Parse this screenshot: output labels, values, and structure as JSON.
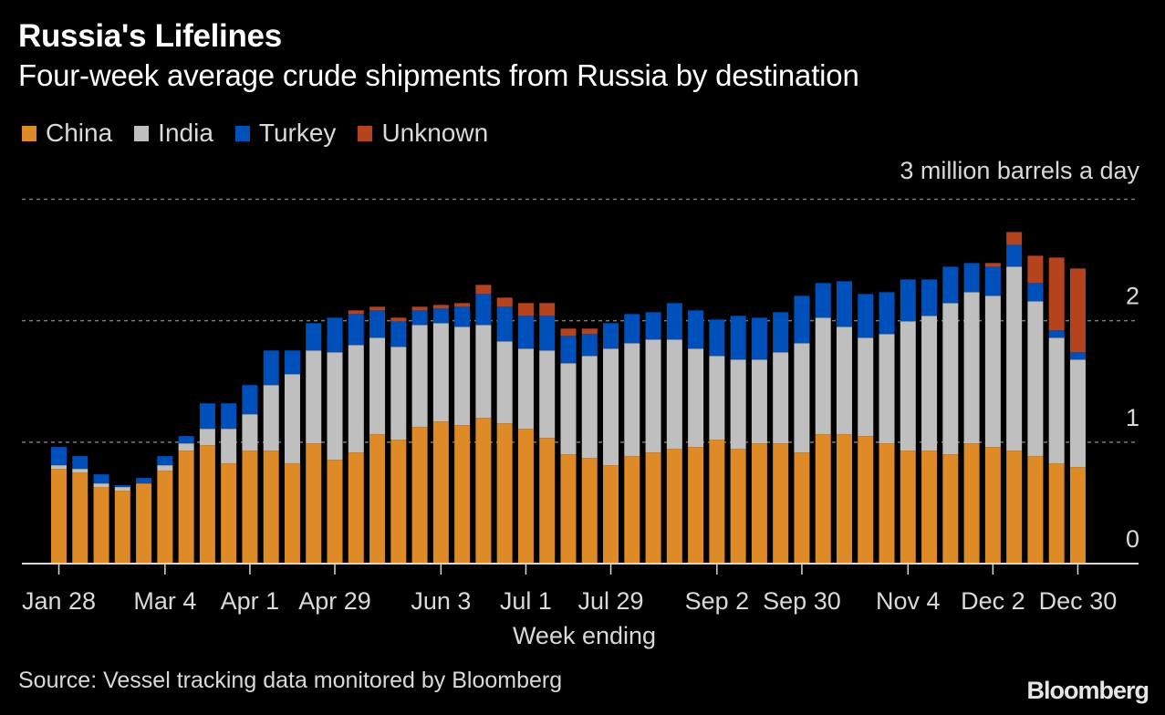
{
  "header": {
    "title": "Russia's Lifelines",
    "subtitle": "Four-week average crude shipments from Russia by destination"
  },
  "legend": [
    {
      "label": "China",
      "color": "#DD8A27"
    },
    {
      "label": "India",
      "color": "#BFBFBF"
    },
    {
      "label": "Turkey",
      "color": "#0050BB"
    },
    {
      "label": "Unknown",
      "color": "#B5431E"
    }
  ],
  "unit_label": "3 million barrels a day",
  "xlabel": "Week ending",
  "source": "Source: Vessel tracking data monitored by Bloomberg",
  "logo": "Bloomberg",
  "chart_data": {
    "type": "bar",
    "stacked": true,
    "title": "Russia's Lifelines",
    "subtitle": "Four-week average crude shipments from Russia by destination",
    "xlabel": "Week ending",
    "ylabel": "million barrels a day",
    "ylim": [
      0,
      3
    ],
    "yticks": [
      0,
      1,
      2,
      3
    ],
    "ytick_labels": [
      "0",
      "1",
      "2",
      "3 million barrels a day"
    ],
    "y_axis_side": "right",
    "grid": true,
    "legend_position": "top-left",
    "categories": [
      "Jan 28",
      "Feb 4",
      "Feb 11",
      "Feb 18",
      "Feb 25",
      "Mar 4",
      "Mar 11",
      "Mar 18",
      "Mar 25",
      "Apr 1",
      "Apr 8",
      "Apr 15",
      "Apr 22",
      "Apr 29",
      "May 6",
      "May 13",
      "May 20",
      "May 27",
      "Jun 3",
      "Jun 10",
      "Jun 17",
      "Jun 24",
      "Jul 1",
      "Jul 8",
      "Jul 15",
      "Jul 22",
      "Jul 29",
      "Aug 5",
      "Aug 12",
      "Aug 19",
      "Aug 26",
      "Sep 2",
      "Sep 9",
      "Sep 16",
      "Sep 23",
      "Sep 30",
      "Oct 7",
      "Oct 14",
      "Oct 21",
      "Oct 28",
      "Nov 4",
      "Nov 11",
      "Nov 18",
      "Nov 25",
      "Dec 2",
      "Dec 9",
      "Dec 16",
      "Dec 23",
      "Dec 30"
    ],
    "xtick_labels": [
      {
        "index": 0,
        "label": "Jan 28"
      },
      {
        "index": 5,
        "label": "Mar 4"
      },
      {
        "index": 9,
        "label": "Apr 1"
      },
      {
        "index": 13,
        "label": "Apr 29"
      },
      {
        "index": 18,
        "label": "Jun 3"
      },
      {
        "index": 22,
        "label": "Jul 1"
      },
      {
        "index": 26,
        "label": "Jul 29"
      },
      {
        "index": 31,
        "label": "Sep 2"
      },
      {
        "index": 35,
        "label": "Sep 30"
      },
      {
        "index": 40,
        "label": "Nov 4"
      },
      {
        "index": 44,
        "label": "Dec 2"
      },
      {
        "index": 48,
        "label": "Dec 30"
      }
    ],
    "series": [
      {
        "name": "China",
        "color": "#DD8A27",
        "values": [
          0.78,
          0.75,
          0.63,
          0.6,
          0.66,
          0.765,
          0.93,
          0.975,
          0.825,
          0.93,
          0.93,
          0.825,
          0.99,
          0.855,
          0.915,
          1.065,
          1.02,
          1.125,
          1.17,
          1.14,
          1.2,
          1.155,
          1.11,
          1.035,
          0.9,
          0.87,
          0.81,
          0.885,
          0.915,
          0.945,
          0.96,
          1.02,
          0.945,
          0.99,
          0.99,
          0.915,
          1.065,
          1.065,
          1.05,
          0.99,
          0.93,
          0.93,
          0.9,
          0.99,
          0.96,
          0.93,
          0.885,
          0.825,
          0.795
        ]
      },
      {
        "name": "India",
        "color": "#BFBFBF",
        "values": [
          0.03,
          0.03,
          0.03,
          0.03,
          0.0,
          0.045,
          0.06,
          0.135,
          0.285,
          0.3,
          0.54,
          0.735,
          0.765,
          0.885,
          0.885,
          0.795,
          0.765,
          0.84,
          0.81,
          0.81,
          0.765,
          0.675,
          0.66,
          0.72,
          0.75,
          0.84,
          0.96,
          0.93,
          0.93,
          0.9,
          0.81,
          0.69,
          0.735,
          0.69,
          0.75,
          0.9,
          0.96,
          0.885,
          0.81,
          0.9,
          1.065,
          1.11,
          1.245,
          1.245,
          1.245,
          1.515,
          1.275,
          1.035,
          0.885
        ]
      },
      {
        "name": "Turkey",
        "color": "#0050BB",
        "values": [
          0.15,
          0.105,
          0.075,
          0.015,
          0.045,
          0.075,
          0.06,
          0.21,
          0.21,
          0.24,
          0.285,
          0.195,
          0.225,
          0.285,
          0.255,
          0.225,
          0.21,
          0.12,
          0.12,
          0.165,
          0.255,
          0.285,
          0.27,
          0.285,
          0.225,
          0.18,
          0.21,
          0.24,
          0.225,
          0.3,
          0.315,
          0.3,
          0.36,
          0.345,
          0.33,
          0.39,
          0.285,
          0.375,
          0.36,
          0.345,
          0.345,
          0.3,
          0.3,
          0.24,
          0.24,
          0.18,
          0.15,
          0.06,
          0.06
        ]
      },
      {
        "name": "Unknown",
        "color": "#B5431E",
        "values": [
          0,
          0,
          0,
          0,
          0,
          0,
          0,
          0,
          0,
          0,
          0,
          0,
          0,
          0,
          0.03,
          0.03,
          0.03,
          0.03,
          0.03,
          0.03,
          0.075,
          0.075,
          0.105,
          0.105,
          0.06,
          0.045,
          0,
          0,
          0,
          0,
          0,
          0,
          0,
          0,
          0,
          0,
          0,
          0,
          0,
          0,
          0,
          0,
          0,
          0,
          0.03,
          0.105,
          0.225,
          0.6,
          0.69
        ]
      }
    ]
  }
}
